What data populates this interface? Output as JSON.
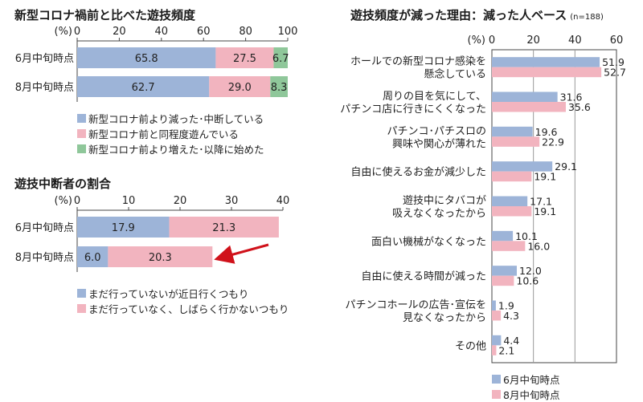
{
  "colors": {
    "blue": "#9db4d8",
    "pink": "#f2b4bf",
    "green": "#8fc79a",
    "axis": "#444444",
    "arrow": "#d0121b"
  },
  "chart_data": [
    {
      "type": "bar",
      "orientation": "horizontal",
      "stacked": true,
      "title": "新型コロナ禍前と比べた遊技頻度",
      "unit_label": "(%)",
      "categories": [
        "6月中旬時点",
        "8月中旬時点"
      ],
      "series": [
        {
          "name": "新型コロナ前より減った･中断している",
          "values": [
            65.8,
            62.7
          ],
          "color": "#9db4d8"
        },
        {
          "name": "新型コロナ前と同程度遊んでいる",
          "values": [
            27.5,
            29.0
          ],
          "color": "#f2b4bf"
        },
        {
          "name": "新型コロナ前より増えた･以降に始めた",
          "values": [
            6.7,
            8.3
          ],
          "color": "#8fc79a"
        }
      ],
      "xlim": [
        0,
        100
      ],
      "xticks": [
        0,
        20,
        40,
        60,
        80,
        100
      ],
      "legend_position": "bottom"
    },
    {
      "type": "bar",
      "orientation": "horizontal",
      "stacked": true,
      "title": "遊技中断者の割合",
      "unit_label": "(%)",
      "categories": [
        "6月中旬時点",
        "8月中旬時点"
      ],
      "series": [
        {
          "name": "まだ行っていないが近日行くつもり",
          "values": [
            17.9,
            6.0
          ],
          "color": "#9db4d8"
        },
        {
          "name": "まだ行っていなく、しばらく行かないつもり",
          "values": [
            21.3,
            20.3
          ],
          "color": "#f2b4bf"
        }
      ],
      "xlim": [
        0,
        40
      ],
      "xticks": [
        0,
        10,
        20,
        30,
        40
      ],
      "annotation": "arrow",
      "legend_position": "bottom"
    },
    {
      "type": "bar",
      "orientation": "horizontal",
      "stacked": false,
      "title": "遊技頻度が減った理由：減った人ベース",
      "subtitle": "(n=188)",
      "unit_label": "(%)",
      "categories": [
        [
          "ホールでの新型コロナ感染を",
          "懸念している"
        ],
        [
          "周りの目を気にして、",
          "パチンコ店に行きにくくなった"
        ],
        [
          "パチンコ･パチスロの",
          "興味や関心が薄れた"
        ],
        [
          "自由に使えるお金が減少した"
        ],
        [
          "遊技中にタバコが",
          "吸えなくなったから"
        ],
        [
          "面白い機械がなくなった"
        ],
        [
          "自由に使える時間が減った"
        ],
        [
          "パチンコホールの広告･宣伝を",
          "見なくなったから"
        ],
        [
          "その他"
        ]
      ],
      "series": [
        {
          "name": "6月中旬時点",
          "values": [
            51.9,
            31.6,
            19.6,
            29.1,
            17.1,
            10.1,
            12.0,
            1.9,
            4.4
          ],
          "color": "#9db4d8"
        },
        {
          "name": "8月中旬時点",
          "values": [
            52.7,
            35.6,
            22.9,
            19.1,
            19.1,
            16.0,
            10.6,
            4.3,
            2.1
          ],
          "color": "#f2b4bf"
        }
      ],
      "xlim": [
        0,
        60
      ],
      "xticks": [
        0,
        20,
        40,
        60
      ],
      "grid": true,
      "legend_position": "bottom"
    }
  ]
}
